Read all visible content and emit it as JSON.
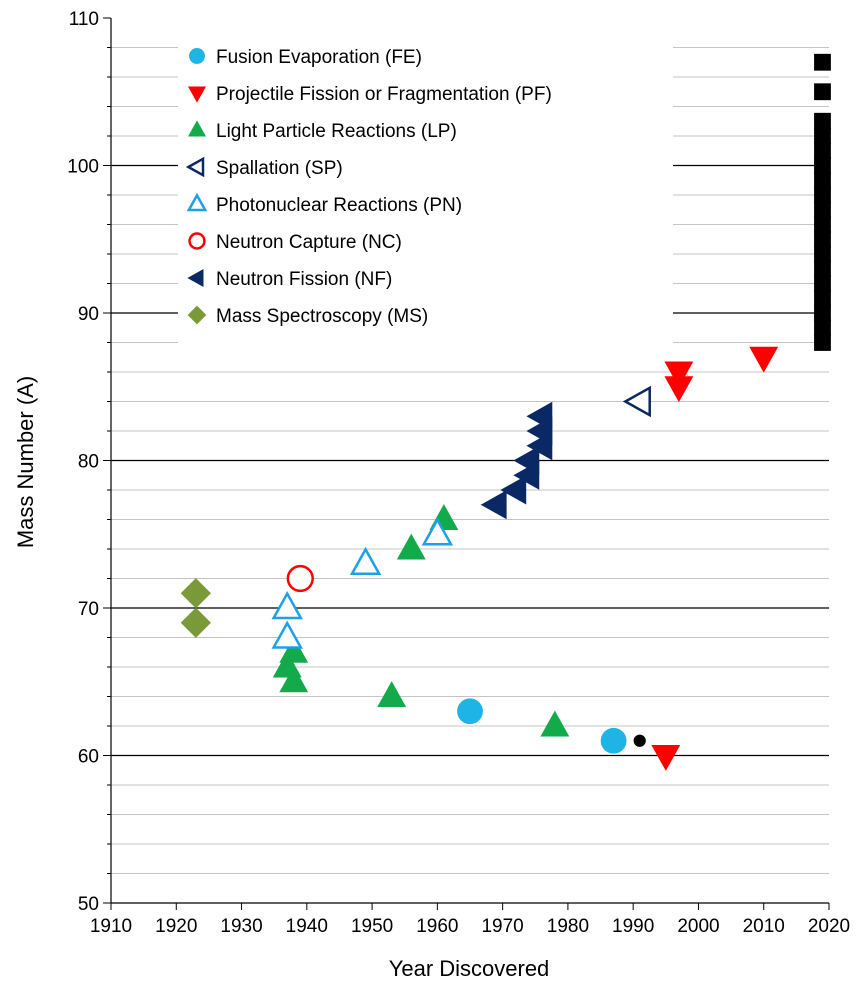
{
  "chart_data": {
    "type": "scatter",
    "xlabel": "Year Discovered",
    "ylabel": "Mass Number (A)",
    "xlim": [
      1910,
      2020
    ],
    "ylim": [
      50,
      110
    ],
    "x_ticks": [
      1910,
      1920,
      1930,
      1940,
      1950,
      1960,
      1970,
      1980,
      1990,
      2000,
      2010,
      2020
    ],
    "y_ticks": [
      50,
      60,
      70,
      80,
      90,
      100,
      110
    ],
    "major_gridlines_y": [
      60,
      70,
      80,
      90,
      100
    ],
    "minor_gridlines_y_step": 2,
    "legend_position": "top-left",
    "series": [
      {
        "name": "Fusion Evaporation (FE)",
        "marker": "circle",
        "color": "#1EB4E6",
        "filled": true,
        "points": [
          [
            1965,
            63
          ],
          [
            1987,
            61
          ]
        ]
      },
      {
        "name": "Projectile Fission or Fragmentation (PF)",
        "marker": "triangle-down",
        "color": "#FF0000",
        "filled": true,
        "points": [
          [
            1995,
            60
          ],
          [
            1997,
            85
          ],
          [
            1997,
            86
          ],
          [
            2010,
            87
          ]
        ]
      },
      {
        "name": "Light Particle Reactions (LP)",
        "marker": "triangle-up",
        "color": "#12AA4B",
        "filled": true,
        "points": [
          [
            1937,
            66
          ],
          [
            1938,
            65
          ],
          [
            1938,
            67
          ],
          [
            1953,
            64
          ],
          [
            1956,
            74
          ],
          [
            1961,
            76
          ],
          [
            1978,
            62
          ]
        ]
      },
      {
        "name": "Spallation (SP)",
        "marker": "triangle-left",
        "color": "#0A2864",
        "filled": false,
        "points": [
          [
            1991,
            84
          ]
        ]
      },
      {
        "name": "Photonuclear Reactions (PN)",
        "marker": "triangle-up",
        "color": "#1EA0E6",
        "filled": false,
        "points": [
          [
            1937,
            68
          ],
          [
            1937,
            70
          ],
          [
            1949,
            73
          ],
          [
            1960,
            75
          ]
        ]
      },
      {
        "name": "Neutron Capture (NC)",
        "marker": "circle",
        "color": "#FF0000",
        "filled": false,
        "points": [
          [
            1939,
            72
          ]
        ]
      },
      {
        "name": "Neutron Fission (NF)",
        "marker": "triangle-left",
        "color": "#0A2864",
        "filled": true,
        "points": [
          [
            1969,
            77
          ],
          [
            1972,
            78
          ],
          [
            1974,
            79
          ],
          [
            1974,
            80
          ],
          [
            1976,
            81
          ],
          [
            1976,
            82
          ],
          [
            1976,
            83
          ]
        ]
      },
      {
        "name": "Mass Spectroscopy (MS)",
        "marker": "diamond",
        "color": "#7A9A3A",
        "filled": true,
        "points": [
          [
            1923,
            69
          ],
          [
            1923,
            71
          ]
        ]
      }
    ],
    "extra_points": [
      {
        "marker": "small-circle",
        "color": "#000000",
        "points": [
          [
            1991,
            61
          ]
        ]
      },
      {
        "marker": "square",
        "color": "#000000",
        "points": [
          [
            2019,
            88
          ],
          [
            2019,
            89
          ],
          [
            2019,
            90
          ],
          [
            2019,
            91
          ],
          [
            2019,
            92
          ],
          [
            2019,
            93
          ],
          [
            2019,
            94
          ],
          [
            2019,
            95
          ],
          [
            2019,
            96
          ],
          [
            2019,
            97
          ],
          [
            2019,
            98
          ],
          [
            2019,
            99
          ],
          [
            2019,
            100
          ],
          [
            2019,
            101
          ],
          [
            2019,
            102
          ],
          [
            2019,
            103
          ],
          [
            2019,
            105
          ],
          [
            2019,
            107
          ]
        ]
      }
    ]
  }
}
